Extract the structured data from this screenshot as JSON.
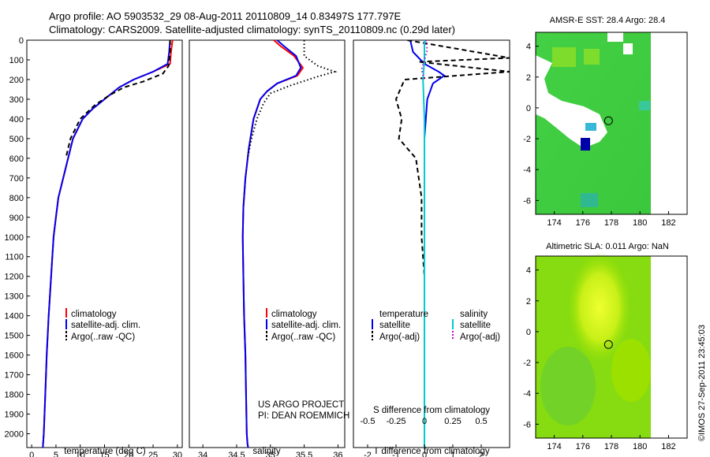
{
  "header": {
    "line1": "Argo profile: AO 5903532_29 08-Aug-2011 20110809_14 0.83497S 177.797E",
    "line2": "Climatology: CARS2009. Satellite-adjusted climatology: synTS_20110809.nc (0.29d later)"
  },
  "side_label": "©IMOS 27-Sep-2011 23:45:03",
  "chart_data": [
    {
      "id": "temperature",
      "type": "line",
      "xlabel": "temperature (deg C)",
      "ylabel": "",
      "xlim": [
        -1,
        31
      ],
      "ylim": [
        2070,
        0
      ],
      "xticks": [
        0,
        5,
        10,
        15,
        20,
        25,
        30
      ],
      "yticks": [
        0,
        100,
        200,
        300,
        400,
        500,
        600,
        700,
        800,
        900,
        1000,
        1100,
        1200,
        1300,
        1400,
        1500,
        1600,
        1700,
        1800,
        1900,
        2000
      ],
      "legend": {
        "placement": "lower-left",
        "entries": [
          "climatology",
          "satellite-adj. clim.",
          "Argo(..raw -QC)"
        ]
      },
      "series": [
        {
          "name": "climatology",
          "color": "#ff0000",
          "style": "solid",
          "x": [
            29.0,
            28.7,
            28.5,
            25.0,
            21.0,
            18.0,
            15.0,
            12.5,
            10.5,
            8.5,
            7.5,
            6.5,
            5.5,
            5.0,
            4.5,
            4.0,
            3.5,
            3.1,
            2.8,
            2.5,
            2.3
          ],
          "y": [
            0,
            60,
            120,
            160,
            200,
            240,
            300,
            350,
            400,
            500,
            600,
            700,
            800,
            900,
            1000,
            1200,
            1400,
            1600,
            1800,
            2000,
            2070
          ]
        },
        {
          "name": "satellite-adj. clim.",
          "color": "#0000ee",
          "style": "solid",
          "x": [
            28.5,
            28.3,
            28.0,
            25.0,
            21.0,
            18.0,
            15.0,
            12.5,
            10.5,
            8.5,
            7.5,
            6.5,
            5.5,
            5.0,
            4.5,
            4.0,
            3.5,
            3.1,
            2.8,
            2.5,
            2.3
          ],
          "y": [
            0,
            60,
            120,
            160,
            200,
            240,
            300,
            350,
            400,
            500,
            600,
            700,
            800,
            900,
            1000,
            1200,
            1400,
            1600,
            1800,
            2000,
            2070
          ]
        },
        {
          "name": "Argo(..raw -QC)",
          "color": "#000000",
          "style": "dashed",
          "x": [
            28.5,
            28.5,
            28.2,
            27.0,
            23.0,
            19.0,
            16.0,
            13.0,
            10.0,
            8.0,
            7.0
          ],
          "y": [
            0,
            60,
            130,
            170,
            210,
            240,
            280,
            330,
            400,
            500,
            600
          ]
        }
      ]
    },
    {
      "id": "salinity",
      "type": "line",
      "xlabel": "salinity",
      "ylabel": "",
      "xlim": [
        33.8,
        36.1
      ],
      "ylim": [
        2070,
        0
      ],
      "xticks": [
        34,
        34.5,
        35,
        35.5,
        36
      ],
      "legend": {
        "placement": "lower-left",
        "entries": [
          "climatology",
          "satellite-adj. clim.",
          "Argo(..raw -QC)"
        ]
      },
      "annotations": [
        "US ARGO PROJECT",
        "PI: DEAN ROEMMICH"
      ],
      "series": [
        {
          "name": "climatology",
          "color": "#ff0000",
          "style": "solid",
          "x": [
            35.05,
            35.15,
            35.35,
            35.48,
            35.4,
            35.1,
            34.95,
            34.85,
            34.75,
            34.68,
            34.63,
            34.6,
            34.59,
            34.6,
            34.61,
            34.63,
            34.64,
            34.65,
            34.66,
            34.67
          ],
          "y": [
            0,
            30,
            80,
            140,
            180,
            220,
            260,
            300,
            400,
            550,
            700,
            850,
            1000,
            1200,
            1400,
            1600,
            1800,
            2000,
            2050,
            2070
          ]
        },
        {
          "name": "satellite-adj. clim.",
          "color": "#0000ee",
          "style": "solid",
          "x": [
            35.1,
            35.2,
            35.38,
            35.45,
            35.38,
            35.1,
            34.95,
            34.85,
            34.75,
            34.68,
            34.63,
            34.6,
            34.59,
            34.6,
            34.61,
            34.63,
            34.64,
            34.65,
            34.66,
            34.67
          ],
          "y": [
            0,
            30,
            80,
            140,
            180,
            220,
            260,
            300,
            400,
            550,
            700,
            850,
            1000,
            1200,
            1400,
            1600,
            1800,
            2000,
            2050,
            2070
          ]
        },
        {
          "name": "Argo(..raw -QC)",
          "color": "#000000",
          "style": "dotted",
          "x": [
            35.5,
            35.5,
            35.7,
            35.95,
            35.7,
            35.3,
            35.0,
            34.9,
            34.8,
            34.72,
            34.66
          ],
          "y": [
            0,
            80,
            130,
            160,
            185,
            230,
            270,
            320,
            400,
            500,
            600
          ]
        }
      ]
    },
    {
      "id": "difference",
      "type": "line",
      "xlabel": "T difference from climatology",
      "xlabel_top": "S difference from climatology",
      "xlim": [
        -2.5,
        3.0
      ],
      "ylim": [
        2070,
        0
      ],
      "xticks": [
        -2,
        -1,
        0,
        1,
        2
      ],
      "xticks_top": [
        "-0.5",
        "-0.25",
        "0",
        "0.25",
        "0.5"
      ],
      "xtick_top_pos": [
        -2,
        -1,
        0,
        1,
        2
      ],
      "legend": {
        "placement": "lower",
        "group1": "temperature",
        "group2": "salinity",
        "entries": [
          "satellite",
          "Argo(-adj)",
          "satellite",
          "Argo(-adj)"
        ]
      },
      "series": [
        {
          "name": "temperature satellite",
          "color": "#0000ee",
          "style": "solid",
          "x": [
            -0.5,
            -0.4,
            0.0,
            0.5,
            0.7,
            0.3,
            0.1,
            0.0,
            0.0,
            0.0,
            0.0
          ],
          "y": [
            0,
            60,
            120,
            160,
            180,
            220,
            300,
            500,
            1000,
            1500,
            2070
          ]
        },
        {
          "name": "temperature Argo(-adj)",
          "color": "#000000",
          "style": "dashed",
          "x": [
            -0.6,
            3.0,
            -0.2,
            3.0,
            -0.7,
            -1.0,
            -0.8,
            -0.9,
            -0.3,
            -0.1,
            -0.1,
            0.0
          ],
          "y": [
            0,
            90,
            110,
            160,
            200,
            300,
            400,
            500,
            600,
            800,
            1000,
            1200
          ]
        },
        {
          "name": "salinity satellite",
          "color": "#00cccc",
          "style": "solid",
          "x": [
            0.0,
            0.0,
            -0.05,
            0.0,
            0.0,
            0.0,
            0.0
          ],
          "y": [
            0,
            100,
            200,
            400,
            1000,
            1500,
            2070
          ]
        },
        {
          "name": "salinity Argo(-adj)",
          "color": "#cc00cc",
          "style": "dotted",
          "x": [
            0.05,
            0.1,
            0.0,
            -0.1,
            0.0
          ],
          "y": [
            0,
            50,
            100,
            150,
            200
          ]
        }
      ]
    },
    {
      "id": "sst-map",
      "type": "heatmap",
      "title": "AMSR-E SST: 28.4  Argo: 28.4",
      "xlim": [
        172.7,
        183.3
      ],
      "ylim": [
        -6.9,
        4.9
      ],
      "xticks": [
        174,
        176,
        178,
        180,
        182
      ],
      "yticks": [
        4,
        2,
        0,
        -2,
        -4,
        -6
      ],
      "marker": {
        "lon": 177.797,
        "lat": -0.835
      }
    },
    {
      "id": "sla-map",
      "type": "heatmap",
      "title": "Altimetric SLA: 0.011  Argo: NaN",
      "xlim": [
        172.7,
        183.3
      ],
      "ylim": [
        -6.9,
        4.9
      ],
      "xticks": [
        174,
        176,
        178,
        180,
        182
      ],
      "yticks": [
        4,
        2,
        0,
        -2,
        -4,
        -6
      ],
      "marker": {
        "lon": 177.797,
        "lat": -0.835
      }
    }
  ]
}
